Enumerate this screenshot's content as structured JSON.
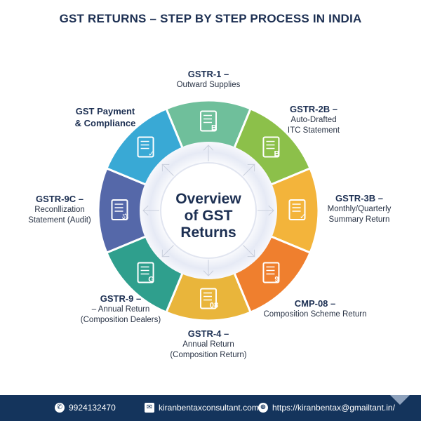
{
  "title": "GST RETURNS – STEP BY STEP PROCESS IN INDIA",
  "center": {
    "lines": [
      "Overview",
      "of GST",
      "Returns"
    ]
  },
  "segments": [
    {
      "name": "gstr-1",
      "color": "#6fbf9b",
      "icon": "document-search-icon",
      "glyph": "B",
      "title": "GSTR-1 –",
      "sub": [
        "Outward Supplies"
      ]
    },
    {
      "name": "gstr-2b",
      "color": "#8cc04a",
      "icon": "document-b-icon",
      "glyph": "B",
      "title": "GSTR-2B –",
      "sub": [
        "Auto-Drafted",
        "ITC Statement"
      ]
    },
    {
      "name": "gstr-3b",
      "color": "#f3b43b",
      "icon": "calendar-check-icon",
      "glyph": "✓",
      "title": "GSTR-3B –",
      "sub": [
        "Monthly/Quarterly",
        "Summary Return"
      ]
    },
    {
      "name": "cmp-08",
      "color": "#ef7f2e",
      "icon": "document-9-icon",
      "glyph": "9",
      "title": "CMP-08 –",
      "sub": [
        "Composition Scheme Return"
      ]
    },
    {
      "name": "gstr-4",
      "color": "#e9b53b",
      "icon": "document-08-icon",
      "glyph": "08",
      "title": "GSTR-4 –",
      "sub": [
        "Annual Return",
        "(Composition Return)"
      ]
    },
    {
      "name": "gstr-9",
      "color": "#2f9f8d",
      "icon": "document-shield-icon",
      "glyph": "G",
      "title": "GSTR-9 –",
      "sub": [
        "– Annual Return",
        "(Composition Dealers)"
      ]
    },
    {
      "name": "gstr-9c",
      "color": "#5568a9",
      "icon": "scales-hand-icon",
      "glyph": "⚖",
      "title": "GSTR-9C –",
      "sub": [
        "Reconllization",
        "Statement (Audit)"
      ]
    },
    {
      "name": "gst-payment",
      "color": "#39a9d5",
      "icon": "document-shield-check-icon",
      "glyph": "✓",
      "title": "GST Payment",
      "title2": "& Compliance",
      "sub": []
    }
  ],
  "footer": {
    "phone": "9924132470",
    "email": "kiranbentaxconsultant.com",
    "website": "https://kiranbentax@gmailtant.in/",
    "phone_icon": "phone-icon",
    "email_icon": "envelope-icon",
    "web_icon": "globe-icon",
    "background": "#14345c"
  }
}
